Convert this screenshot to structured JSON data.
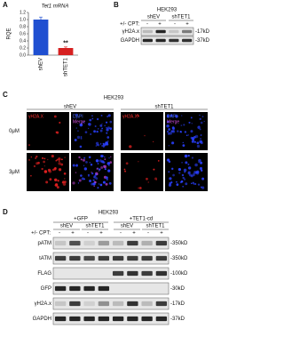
{
  "chart_data": {
    "type": "bar",
    "panel_label": "A",
    "title": "Tet1 mRNA",
    "y_label": "RQE",
    "categories": [
      "shEV",
      "shTET1"
    ],
    "values": [
      1.0,
      0.2
    ],
    "errors": [
      0.07,
      0.03
    ],
    "colors": [
      "#1f4fd1",
      "#d62020"
    ],
    "ylim": [
      0,
      1.2
    ],
    "yticks": [
      {
        "value": 0,
        "label": "0.0"
      },
      0.2,
      0.4,
      0.6,
      0.8,
      {
        "value": 1,
        "label": "1.0"
      },
      1.2
    ],
    "annotation": "**"
  },
  "panel_b": {
    "label": "B",
    "cell_line": "HEK293",
    "groups": [
      "shEV",
      "shTET1"
    ],
    "treatment_label": "+/- CPT:",
    "treatment_signs": [
      "-",
      "+",
      "-",
      "+"
    ],
    "rows": [
      {
        "name": "γH2A.x",
        "size": "-17kD"
      },
      {
        "name": "GAPDH",
        "size": "-37kD"
      }
    ]
  },
  "panel_c": {
    "label": "C",
    "cell_line": "HEK293",
    "groups": [
      "shEV",
      "shTET1"
    ],
    "channels": [
      "γH2A.X",
      "DAPI",
      "Merge"
    ],
    "doses": [
      "0μM",
      "3μM"
    ]
  },
  "panel_d": {
    "label": "D",
    "cell_line": "HEK293",
    "constructs": [
      "+GFP",
      "+TET1-cd"
    ],
    "groups": [
      "shEV",
      "shTET1",
      "shEV",
      "shTET1"
    ],
    "treatment_label": "+/- CPT:",
    "treatment_signs": [
      "-",
      "+",
      "-",
      "+",
      "-",
      "+",
      "-",
      "+"
    ],
    "rows": [
      {
        "name": "pATM",
        "size": "-350kD"
      },
      {
        "name": "tATM",
        "size": "-350kD"
      },
      {
        "name": "FLAG",
        "size": "-100kD"
      },
      {
        "name": "GFP",
        "size": "-30kD"
      },
      {
        "name": "γH2A.x",
        "size": "-17kD"
      },
      {
        "name": "GAPDH",
        "size": "-37kD"
      }
    ]
  }
}
